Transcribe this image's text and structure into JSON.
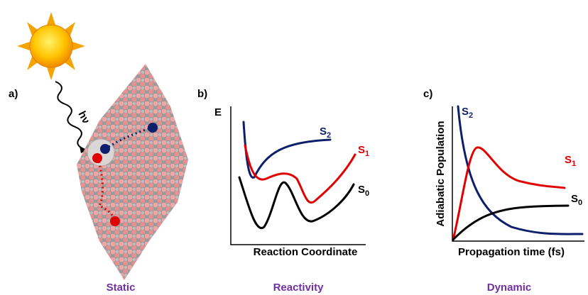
{
  "panels": [
    {
      "label": "a)",
      "photon": "hν",
      "caption": "Static"
    },
    {
      "label": "b)",
      "y_axis": "E",
      "x_axis": "Reaction Coordinate",
      "states": [
        {
          "main": "S",
          "sub": "2"
        },
        {
          "main": "S",
          "sub": "1"
        },
        {
          "main": "S",
          "sub": "0"
        }
      ],
      "caption": "Reactivity"
    },
    {
      "label": "c)",
      "y_axis": "Adiabatic Population",
      "x_axis": "Propagation time (fs)",
      "states": [
        {
          "main": "S",
          "sub": "2"
        },
        {
          "main": "S",
          "sub": "1"
        },
        {
          "main": "S",
          "sub": "0"
        }
      ],
      "caption": "Dynamic"
    }
  ]
}
